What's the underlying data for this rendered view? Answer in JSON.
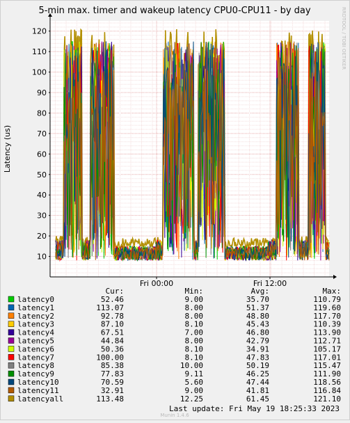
{
  "chart_data": {
    "type": "line",
    "title": "5-min max. timer and wakeup latency CPU0-CPU11 - by day",
    "ylabel": "Latency (us)",
    "xlabel": "",
    "ylim": [
      0,
      125
    ],
    "yticks": [
      10,
      20,
      30,
      40,
      50,
      60,
      70,
      80,
      90,
      100,
      110,
      120
    ],
    "xticks": [
      "Fri 00:00",
      "Fri 12:00"
    ],
    "grid": true,
    "side_label": "RRDTOOL / TOBI OETIKER",
    "columns": [
      "Cur:",
      "Min:",
      "Avg:",
      "Max:"
    ],
    "series": [
      {
        "name": "latency0",
        "color": "#00cc00",
        "cur": "52.46",
        "min": "9.00",
        "avg": "35.70",
        "max": "110.79"
      },
      {
        "name": "latency1",
        "color": "#0066b3",
        "cur": "113.07",
        "min": "8.00",
        "avg": "51.37",
        "max": "119.60"
      },
      {
        "name": "latency2",
        "color": "#ff8000",
        "cur": "92.78",
        "min": "8.00",
        "avg": "48.80",
        "max": "117.70"
      },
      {
        "name": "latency3",
        "color": "#ffcc00",
        "cur": "87.10",
        "min": "8.10",
        "avg": "45.43",
        "max": "110.39"
      },
      {
        "name": "latency4",
        "color": "#330099",
        "cur": "67.51",
        "min": "7.00",
        "avg": "46.80",
        "max": "113.90"
      },
      {
        "name": "latency5",
        "color": "#990099",
        "cur": "44.84",
        "min": "8.00",
        "avg": "42.79",
        "max": "112.71"
      },
      {
        "name": "latency6",
        "color": "#ccff00",
        "cur": "50.36",
        "min": "8.10",
        "avg": "34.91",
        "max": "105.17"
      },
      {
        "name": "latency7",
        "color": "#ff0000",
        "cur": "100.00",
        "min": "8.10",
        "avg": "47.83",
        "max": "117.01"
      },
      {
        "name": "latency8",
        "color": "#808080",
        "cur": "85.38",
        "min": "10.00",
        "avg": "50.19",
        "max": "115.47"
      },
      {
        "name": "latency9",
        "color": "#008f00",
        "cur": "77.83",
        "min": "9.11",
        "avg": "46.25",
        "max": "111.90"
      },
      {
        "name": "latency10",
        "color": "#00487d",
        "cur": "70.59",
        "min": "5.60",
        "avg": "47.44",
        "max": "118.56"
      },
      {
        "name": "latency11",
        "color": "#b35a00",
        "cur": "32.91",
        "min": "9.00",
        "avg": "41.81",
        "max": "116.84"
      },
      {
        "name": "latencyall",
        "color": "#b38f00",
        "cur": "113.48",
        "min": "12.25",
        "avg": "61.45",
        "max": "121.10"
      }
    ],
    "last_update": "Last update: Fri May 19 18:25:33 2023",
    "footer": "Munin 1.4.6"
  }
}
